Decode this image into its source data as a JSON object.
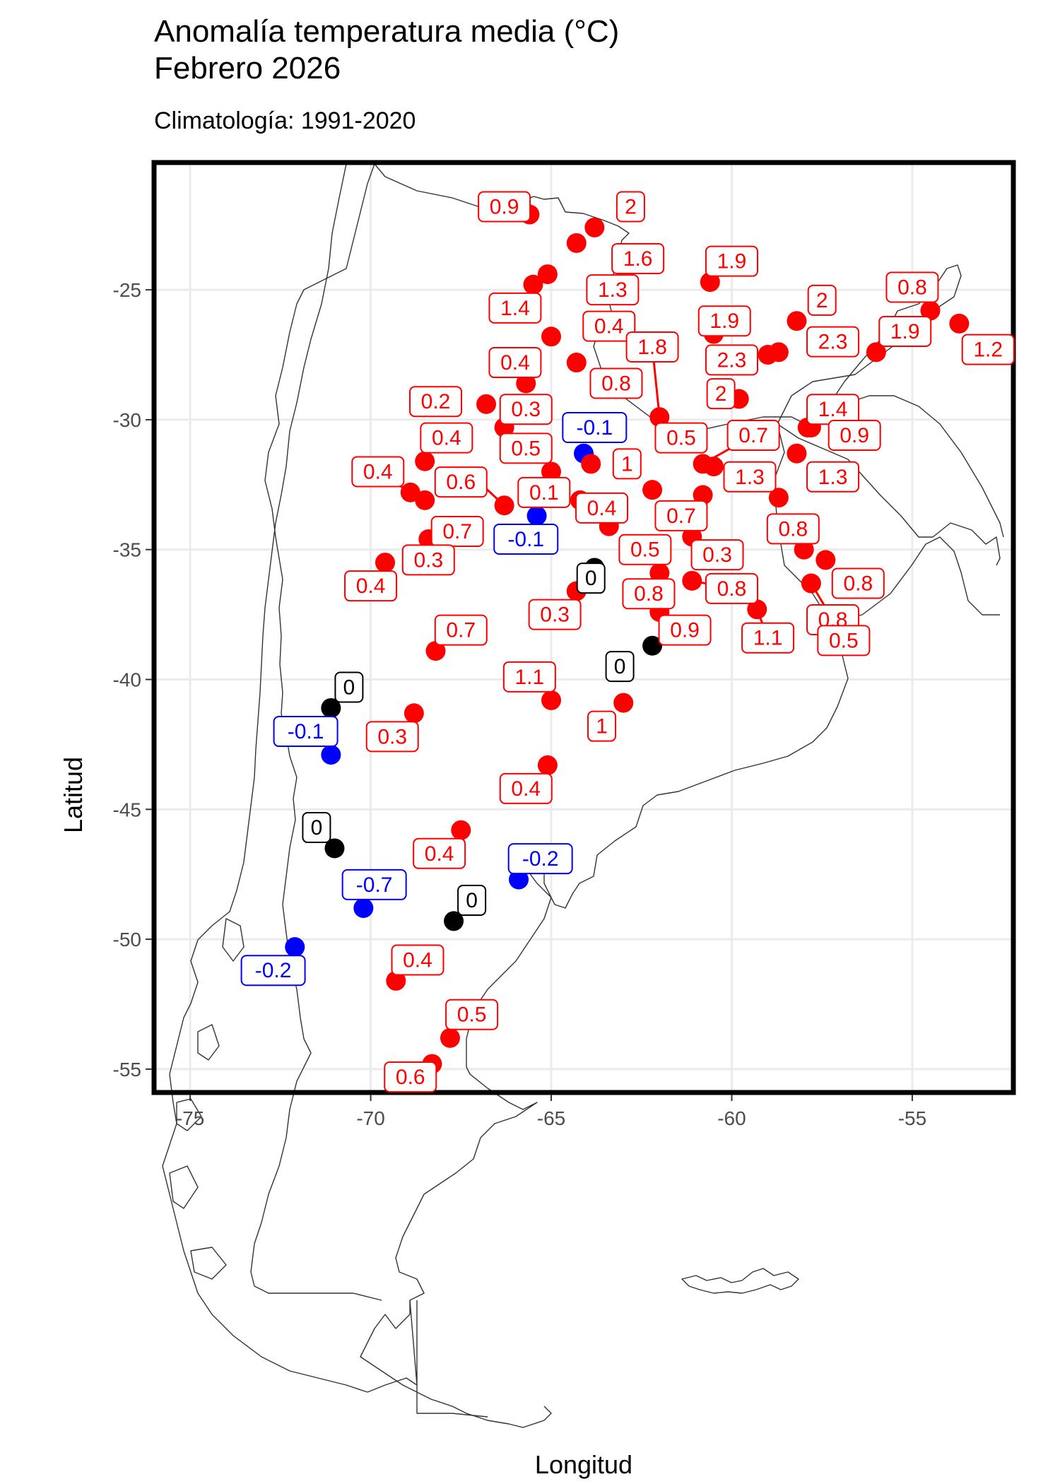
{
  "title": "Anomalía temperatura media (°C)",
  "subtitle_line": "Febrero 2026",
  "caption": "Climatología: 1991-2020",
  "x_axis_label": "Longitud",
  "y_axis_label": "Latitud",
  "colors": {
    "positive": "#ff0000",
    "negative": "#0000ff",
    "zero": "#000000",
    "grid": "#ebebeb",
    "frame": "#000000",
    "border": "#333333"
  },
  "chart_data": {
    "type": "scatter",
    "xlim": [
      -76,
      -52.2
    ],
    "ylim": [
      -55.9,
      -20.1
    ],
    "x_ticks": [
      -75,
      -70,
      -65,
      -60,
      -55
    ],
    "x_tick_labels": [
      "-75",
      "-70",
      "-65",
      "-60",
      "-55"
    ],
    "y_ticks": [
      -25,
      -30,
      -35,
      -40,
      -45,
      -50,
      -55
    ],
    "y_tick_labels": [
      "-25",
      "-30",
      "-35",
      "-40",
      "-45",
      "-50",
      "-55"
    ],
    "grid": true,
    "legend": "none",
    "stations": [
      {
        "lon": -65.6,
        "lat": -22.1,
        "value": "0.9",
        "lx": -66.3,
        "ly": -21.8
      },
      {
        "lon": -63.8,
        "lat": -22.6,
        "value": "2",
        "lx": -62.8,
        "ly": -21.8
      },
      {
        "lon": -64.3,
        "lat": -23.2,
        "value": "1.6",
        "lx": -62.6,
        "ly": -23.8
      },
      {
        "lon": -65.1,
        "lat": -24.4,
        "value": "1.3",
        "lx": -63.3,
        "ly": -25.0
      },
      {
        "lon": -65.5,
        "lat": -24.8,
        "value": "1.4",
        "lx": -66.0,
        "ly": -25.7
      },
      {
        "lon": -60.6,
        "lat": -24.7,
        "value": "1.9",
        "lx": -60.0,
        "ly": -23.9
      },
      {
        "lon": -65.0,
        "lat": -26.8,
        "value": "0.4",
        "lx": -63.4,
        "ly": -26.4
      },
      {
        "lon": -64.3,
        "lat": -27.8,
        "value": "0.8",
        "lx": -63.2,
        "ly": -28.6
      },
      {
        "lon": -65.7,
        "lat": -28.6,
        "value": "0.4",
        "lx": -66.0,
        "ly": -27.8
      },
      {
        "lon": -66.8,
        "lat": -29.4,
        "value": "0.2",
        "lx": -68.2,
        "ly": -29.3
      },
      {
        "lon": -66.3,
        "lat": -30.3,
        "value": "0.3",
        "lx": -65.7,
        "ly": -29.6
      },
      {
        "lon": -60.5,
        "lat": -26.7,
        "value": "1.9",
        "lx": -60.2,
        "ly": -26.2
      },
      {
        "lon": -58.2,
        "lat": -26.2,
        "value": "2",
        "lx": -57.5,
        "ly": -25.4
      },
      {
        "lon": -58.7,
        "lat": -27.4,
        "value": "2.3",
        "lx": -57.2,
        "ly": -27.0
      },
      {
        "lon": -59.0,
        "lat": -27.5,
        "value": "2.3",
        "lx": -60.0,
        "ly": -27.7
      },
      {
        "lon": -59.8,
        "lat": -29.2,
        "value": "2",
        "lx": -60.3,
        "ly": -29.0
      },
      {
        "lon": -62.0,
        "lat": -29.9,
        "value": "1.8",
        "lx": -62.2,
        "ly": -27.2,
        "leader": true
      },
      {
        "lon": -62.0,
        "lat": -29.9,
        "value": "0.5",
        "lx": -61.4,
        "ly": -30.7,
        "hide_dot": true
      },
      {
        "lon": -64.1,
        "lat": -31.3,
        "value": "-0.1",
        "lx": -63.8,
        "ly": -30.3
      },
      {
        "lon": -63.9,
        "lat": -31.7,
        "value": "1",
        "lx": -62.9,
        "ly": -31.7
      },
      {
        "lon": -65.0,
        "lat": -32.0,
        "value": "0.5",
        "lx": -65.7,
        "ly": -31.1
      },
      {
        "lon": -60.8,
        "lat": -31.7,
        "value": "0.7",
        "lx": -59.4,
        "ly": -30.6,
        "leader": true
      },
      {
        "lon": -60.5,
        "lat": -31.8,
        "value": "1.3",
        "lx": -59.5,
        "ly": -32.2
      },
      {
        "lon": -68.5,
        "lat": -31.6,
        "value": "0.4",
        "lx": -67.9,
        "ly": -30.7
      },
      {
        "lon": -68.9,
        "lat": -32.8,
        "value": "0.4",
        "lx": -69.8,
        "ly": -32.0,
        "leader": true
      },
      {
        "lon": -68.5,
        "lat": -33.1,
        "value": "0.6",
        "lx": -67.5,
        "ly": -32.4,
        "hide_dot": false
      },
      {
        "lon": -66.3,
        "lat": -33.3,
        "value": "0.6",
        "lx": -67.0,
        "ly": -32.4,
        "leader": true,
        "hide_label": true
      },
      {
        "lon": -64.2,
        "lat": -33.1,
        "value": "0.1",
        "lx": -65.2,
        "ly": -32.8
      },
      {
        "lon": -63.4,
        "lat": -34.1,
        "value": "0.4",
        "lx": -63.6,
        "ly": -33.4
      },
      {
        "lon": -65.4,
        "lat": -33.7,
        "value": "-0.1",
        "lx": -65.7,
        "ly": -34.6
      },
      {
        "lon": -62.2,
        "lat": -32.7,
        "value": "0.7",
        "lx": -61.4,
        "ly": -33.7
      },
      {
        "lon": -60.8,
        "lat": -32.9,
        "value": "0.3",
        "lx": -60.4,
        "ly": -35.2
      },
      {
        "lon": -61.1,
        "lat": -34.5,
        "value": "0.5",
        "lx": -62.4,
        "ly": -35.0
      },
      {
        "lon": -68.4,
        "lat": -34.6,
        "value": "0.7",
        "lx": -67.6,
        "ly": -34.3
      },
      {
        "lon": -68.4,
        "lat": -34.6,
        "value": "0.3",
        "lx": -68.4,
        "ly": -35.4,
        "hide_dot": true
      },
      {
        "lon": -69.6,
        "lat": -35.5,
        "value": "0.4",
        "lx": -70.0,
        "ly": -36.4
      },
      {
        "lon": -57.9,
        "lat": -30.3,
        "value": "1.4",
        "lx": -57.2,
        "ly": -29.6
      },
      {
        "lon": -57.2,
        "lat": -29.7,
        "value": "1.4",
        "lx": -57.2,
        "ly": -29.6,
        "hide_label": true
      },
      {
        "lon": -57.8,
        "lat": -30.3,
        "value": "0.9",
        "lx": -56.6,
        "ly": -30.6
      },
      {
        "lon": -54.5,
        "lat": -25.8,
        "value": "0.8",
        "lx": -55.0,
        "ly": -24.9
      },
      {
        "lon": -53.7,
        "lat": -26.3,
        "value": "1.2",
        "lx": -52.9,
        "ly": -27.3
      },
      {
        "lon": -56.0,
        "lat": -27.4,
        "value": "1.9",
        "lx": -55.2,
        "ly": -26.6
      },
      {
        "lon": -58.2,
        "lat": -31.3,
        "value": "1.3",
        "lx": -57.2,
        "ly": -32.2
      },
      {
        "lon": -58.7,
        "lat": -33.0,
        "value": "0.8",
        "lx": -58.3,
        "ly": -34.2
      },
      {
        "lon": -58.0,
        "lat": -35.0,
        "value": "0.8",
        "lx": -58.0,
        "ly": -35.0,
        "hide_label": true
      },
      {
        "lon": -57.4,
        "lat": -35.4,
        "value": "0.8",
        "lx": -56.5,
        "ly": -36.3
      },
      {
        "lon": -57.8,
        "lat": -36.3,
        "value": "0.8",
        "lx": -57.2,
        "ly": -37.7,
        "leader": true
      },
      {
        "lon": -61.1,
        "lat": -36.2,
        "value": "0.8",
        "lx": -60.0,
        "ly": -36.5,
        "leader": true
      },
      {
        "lon": -62.0,
        "lat": -35.9,
        "value": "0.8",
        "lx": -62.3,
        "ly": -36.7
      },
      {
        "lon": -59.3,
        "lat": -37.3,
        "value": "1.1",
        "lx": -59.0,
        "ly": -38.4,
        "leader": true
      },
      {
        "lon": -57.6,
        "lat": -37.9,
        "value": "0.5",
        "lx": -56.9,
        "ly": -38.5
      },
      {
        "lon": -62.0,
        "lat": -37.4,
        "value": "0.9",
        "lx": -61.3,
        "ly": -38.1
      },
      {
        "lon": -63.8,
        "lat": -35.7,
        "value": "0",
        "lx": -63.9,
        "ly": -36.1
      },
      {
        "lon": -64.3,
        "lat": -36.6,
        "value": "0.3",
        "lx": -64.9,
        "ly": -37.5
      },
      {
        "lon": -62.2,
        "lat": -38.7,
        "value": "0",
        "lx": -63.1,
        "ly": -39.5
      },
      {
        "lon": -68.2,
        "lat": -38.9,
        "value": "0.7",
        "lx": -67.5,
        "ly": -38.1
      },
      {
        "lon": -65.0,
        "lat": -40.8,
        "value": "1.1",
        "lx": -65.6,
        "ly": -39.9
      },
      {
        "lon": -63.0,
        "lat": -40.9,
        "value": "1",
        "lx": -63.6,
        "ly": -41.8
      },
      {
        "lon": -71.1,
        "lat": -41.1,
        "value": "0",
        "lx": -70.6,
        "ly": -40.3
      },
      {
        "lon": -68.8,
        "lat": -41.3,
        "value": "0.3",
        "lx": -69.4,
        "ly": -42.2
      },
      {
        "lon": -71.1,
        "lat": -42.9,
        "value": "-0.1",
        "lx": -71.8,
        "ly": -42.0
      },
      {
        "lon": -65.1,
        "lat": -43.3,
        "value": "0.4",
        "lx": -65.7,
        "ly": -44.2
      },
      {
        "lon": -71.0,
        "lat": -46.5,
        "value": "0",
        "lx": -71.5,
        "ly": -45.7
      },
      {
        "lon": -67.5,
        "lat": -45.8,
        "value": "0.4",
        "lx": -68.1,
        "ly": -46.7
      },
      {
        "lon": -65.9,
        "lat": -47.7,
        "value": "-0.2",
        "lx": -65.3,
        "ly": -46.9
      },
      {
        "lon": -70.2,
        "lat": -48.8,
        "value": "-0.7",
        "lx": -69.9,
        "ly": -47.9
      },
      {
        "lon": -67.7,
        "lat": -49.3,
        "value": "0",
        "lx": -67.2,
        "ly": -48.5
      },
      {
        "lon": -72.1,
        "lat": -50.3,
        "value": "-0.2",
        "lx": -72.7,
        "ly": -51.2
      },
      {
        "lon": -69.3,
        "lat": -51.6,
        "value": "0.4",
        "lx": -68.7,
        "ly": -50.8
      },
      {
        "lon": -67.8,
        "lat": -53.8,
        "value": "0.5",
        "lx": -67.2,
        "ly": -52.9
      },
      {
        "lon": -68.3,
        "lat": -54.8,
        "value": "0.6",
        "lx": -68.9,
        "ly": -55.3
      }
    ]
  }
}
